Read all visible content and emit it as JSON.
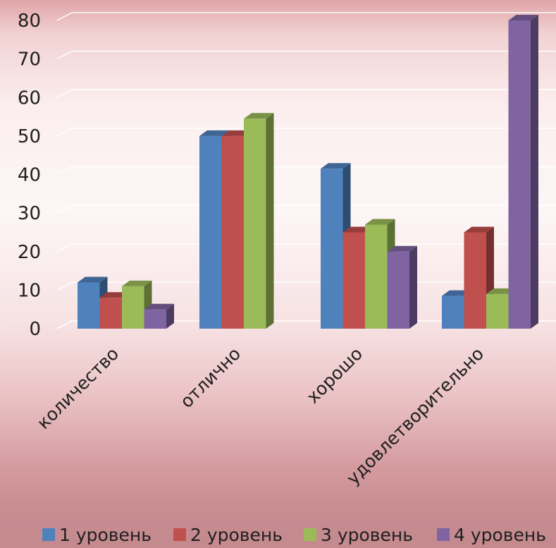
{
  "chart_data": {
    "type": "bar",
    "categories": [
      "количество",
      "отлично",
      "хорошо",
      "удовлетворительно"
    ],
    "series": [
      {
        "name": "1 уровень",
        "color": "#4f81bd",
        "values": [
          12,
          50,
          41.5,
          8.5
        ]
      },
      {
        "name": "2 уровень",
        "color": "#c0504d",
        "values": [
          8,
          50,
          25,
          25
        ]
      },
      {
        "name": "3 уровень",
        "color": "#9bbb59",
        "values": [
          11,
          54.5,
          27,
          9
        ]
      },
      {
        "name": "4 уровень",
        "color": "#8064a2",
        "values": [
          5,
          0,
          20,
          80
        ]
      }
    ],
    "y_ticks": [
      "0",
      "10",
      "20",
      "30",
      "40",
      "50",
      "60",
      "70",
      "80"
    ],
    "ylim": [
      0,
      80
    ],
    "grid": true,
    "legend": "bottom",
    "style": "3d-clustered-column"
  }
}
